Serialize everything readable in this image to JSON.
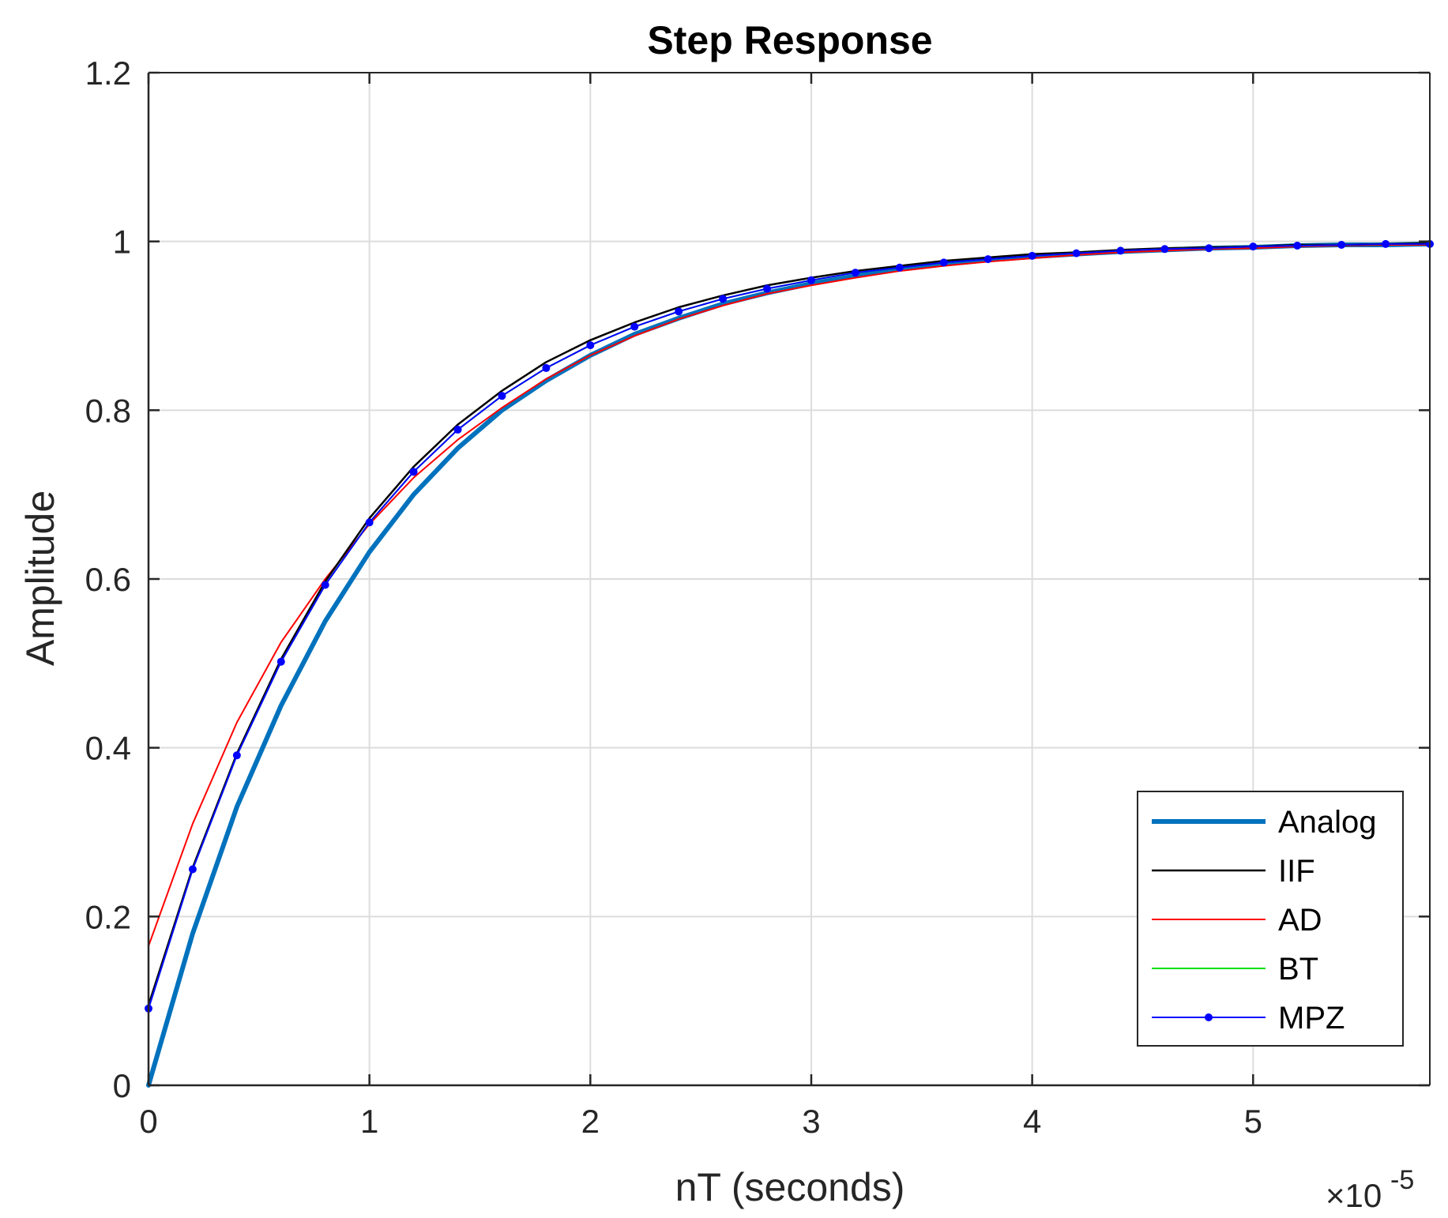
{
  "chart_data": {
    "type": "line",
    "title": "Step Response",
    "xlabel": "nT (seconds)",
    "ylabel": "Amplitude",
    "x_multiplier_text": "×10",
    "x_multiplier_exp": "-5",
    "xlim": [
      0,
      5.8
    ],
    "ylim": [
      0,
      1.2
    ],
    "xticks": [
      0,
      1,
      2,
      3,
      4,
      5
    ],
    "xtick_labels": [
      "0",
      "1",
      "2",
      "3",
      "4",
      "5"
    ],
    "yticks": [
      0,
      0.2,
      0.4,
      0.6,
      0.8,
      1,
      1.2
    ],
    "ytick_labels": [
      "0",
      "0.2",
      "0.4",
      "0.6",
      "0.8",
      "1",
      "1.2"
    ],
    "grid": true,
    "legend_position": "bottom-right",
    "x": [
      0,
      0.2,
      0.4,
      0.6,
      0.8,
      1.0,
      1.2,
      1.4,
      1.6,
      1.8,
      2.0,
      2.2,
      2.4,
      2.6,
      2.8,
      3.0,
      3.2,
      3.4,
      3.6,
      3.8,
      4.0,
      4.2,
      4.4,
      4.6,
      4.8,
      5.0,
      5.2,
      5.4,
      5.6,
      5.8
    ],
    "series": [
      {
        "name": "Analog",
        "color": "#0072BD",
        "values": [
          0,
          0.18,
          0.33,
          0.45,
          0.55,
          0.632,
          0.7,
          0.755,
          0.8,
          0.835,
          0.865,
          0.89,
          0.909,
          0.926,
          0.939,
          0.95,
          0.959,
          0.967,
          0.973,
          0.978,
          0.982,
          0.985,
          0.988,
          0.99,
          0.992,
          0.993,
          0.995,
          0.996,
          0.996,
          0.997
        ]
      },
      {
        "name": "IIF",
        "color": "#000000",
        "values": [
          0.095,
          0.258,
          0.393,
          0.505,
          0.597,
          0.672,
          0.733,
          0.783,
          0.823,
          0.857,
          0.883,
          0.904,
          0.922,
          0.936,
          0.948,
          0.957,
          0.965,
          0.971,
          0.977,
          0.981,
          0.985,
          0.987,
          0.99,
          0.992,
          0.993,
          0.994,
          0.996,
          0.996,
          0.997,
          0.998
        ]
      },
      {
        "name": "AD",
        "color": "#FF0000",
        "values": [
          0.165,
          0.31,
          0.43,
          0.525,
          0.6,
          0.665,
          0.72,
          0.765,
          0.803,
          0.837,
          0.865,
          0.888,
          0.908,
          0.924,
          0.938,
          0.948,
          0.957,
          0.965,
          0.971,
          0.976,
          0.98,
          0.984,
          0.987,
          0.989,
          0.991,
          0.992,
          0.994,
          0.995,
          0.996,
          0.996
        ]
      },
      {
        "name": "BT",
        "color": "#00E000",
        "values": [
          0.091,
          0.256,
          0.391,
          0.502,
          0.593,
          0.667,
          0.727,
          0.777,
          0.817,
          0.85,
          0.877,
          0.899,
          0.917,
          0.932,
          0.944,
          0.954,
          0.963,
          0.969,
          0.975,
          0.979,
          0.983,
          0.986,
          0.989,
          0.991,
          0.992,
          0.994,
          0.995,
          0.996,
          0.997,
          0.997
        ]
      },
      {
        "name": "MPZ",
        "color": "#0000FF",
        "values": [
          0.091,
          0.256,
          0.391,
          0.502,
          0.593,
          0.667,
          0.727,
          0.777,
          0.817,
          0.85,
          0.877,
          0.899,
          0.917,
          0.932,
          0.944,
          0.954,
          0.963,
          0.969,
          0.975,
          0.979,
          0.983,
          0.986,
          0.989,
          0.991,
          0.992,
          0.994,
          0.995,
          0.996,
          0.997,
          0.997
        ]
      }
    ]
  }
}
